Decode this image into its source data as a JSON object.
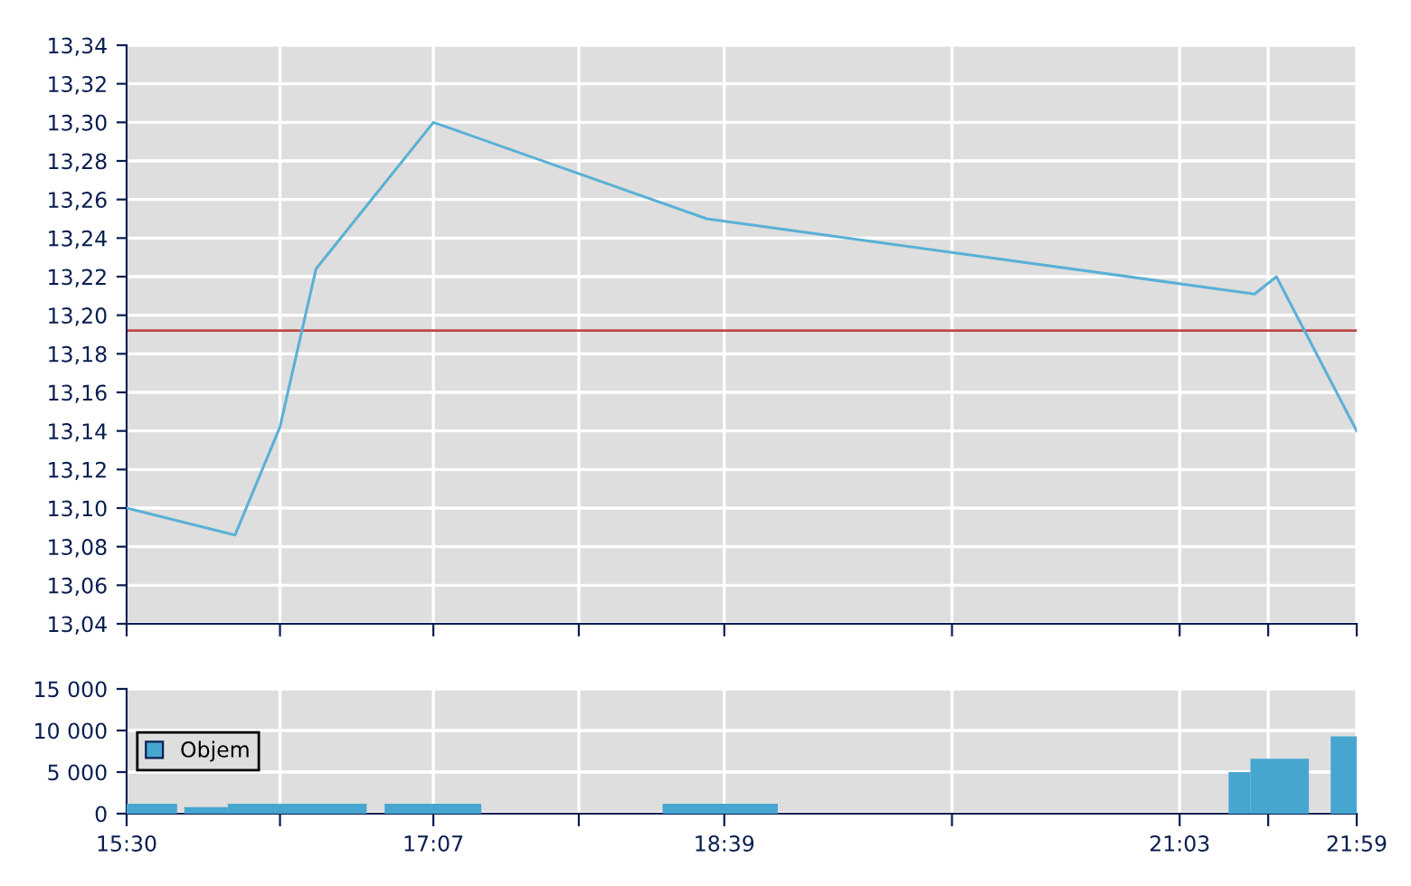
{
  "chart_data": [
    {
      "type": "line",
      "x": [
        15.5,
        16.071,
        16.308,
        16.498,
        17.117,
        18.558,
        21.445,
        21.56,
        21.983
      ],
      "series": [
        {
          "color": "#5ab0d6",
          "values": [
            13.1,
            13.086,
            13.142,
            13.224,
            13.3,
            13.25,
            13.211,
            13.22,
            13.14
          ]
        }
      ],
      "xlim": [
        15.5,
        21.9833
      ],
      "xticks": [
        {
          "value": 15.5,
          "label": null
        },
        {
          "value": 16.3083,
          "label": null
        },
        {
          "value": 17.1167,
          "label": null
        },
        {
          "value": 17.8833,
          "label": null
        },
        {
          "value": 18.65,
          "label": null
        },
        {
          "value": 19.85,
          "label": null
        },
        {
          "value": 21.05,
          "label": null
        },
        {
          "value": 21.5167,
          "label": null
        },
        {
          "value": 21.9833,
          "label": null
        }
      ],
      "ylim": [
        13.04,
        13.34
      ],
      "yticks": [
        {
          "value": 13.04,
          "label": "13,04"
        },
        {
          "value": 13.06,
          "label": "13,06"
        },
        {
          "value": 13.08,
          "label": "13,08"
        },
        {
          "value": 13.1,
          "label": "13,10"
        },
        {
          "value": 13.12,
          "label": "13,12"
        },
        {
          "value": 13.14,
          "label": "13,14"
        },
        {
          "value": 13.16,
          "label": "13,16"
        },
        {
          "value": 13.18,
          "label": "13,18"
        },
        {
          "value": 13.2,
          "label": "13,20"
        },
        {
          "value": 13.22,
          "label": "13,22"
        },
        {
          "value": 13.24,
          "label": "13,24"
        },
        {
          "value": 13.26,
          "label": "13,26"
        },
        {
          "value": 13.28,
          "label": "13,28"
        },
        {
          "value": 13.3,
          "label": "13,30"
        },
        {
          "value": 13.32,
          "label": "13,32"
        },
        {
          "value": 13.34,
          "label": "13,34"
        }
      ],
      "ref_lines": [
        {
          "axis": "y",
          "value": 13.192,
          "color": "#c04848"
        }
      ],
      "grid": true,
      "tick_labels": "y",
      "marker": "none",
      "line_style": "solid"
    },
    {
      "type": "histogram",
      "bins": [
        15.5,
        15.766,
        15.804,
        16.033,
        16.765,
        16.86,
        17.369,
        18.325,
        18.932,
        21.308,
        21.423,
        21.731,
        21.846,
        21.983
      ],
      "series": [
        {
          "name": "Objem",
          "color": "#46a6d0",
          "values": [
            1200,
            0,
            800,
            1200,
            0,
            1200,
            0,
            1200,
            0,
            5000,
            6600,
            0,
            9300
          ]
        }
      ],
      "xlim": [
        15.5,
        21.9833
      ],
      "xticks": [
        {
          "value": 15.5,
          "label": "15:30"
        },
        {
          "value": 16.3083,
          "label": null
        },
        {
          "value": 17.1167,
          "label": "17:07"
        },
        {
          "value": 17.8833,
          "label": null
        },
        {
          "value": 18.65,
          "label": "18:39"
        },
        {
          "value": 19.85,
          "label": null
        },
        {
          "value": 21.05,
          "label": "21:03"
        },
        {
          "value": 21.5167,
          "label": null
        },
        {
          "value": 21.9833,
          "label": "21:59"
        }
      ],
      "ylim": [
        0,
        15000
      ],
      "yticks": [
        {
          "value": 0,
          "label": "0"
        },
        {
          "value": 5000,
          "label": "5 000"
        },
        {
          "value": 10000,
          "label": "10 000"
        },
        {
          "value": 15000,
          "label": "15 000"
        }
      ],
      "grid": true,
      "legend": "left"
    }
  ]
}
